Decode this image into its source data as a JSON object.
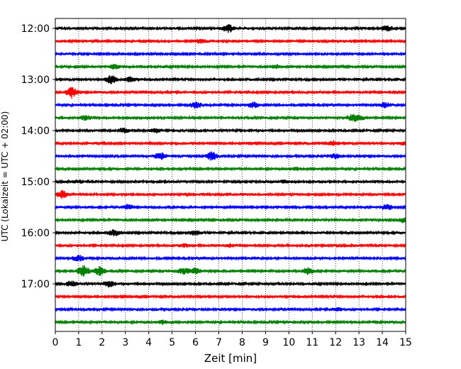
{
  "chart_data": {
    "type": "line",
    "title": "",
    "xlabel": "Zeit  [min]",
    "ylabel": "UTC (Lokalzeit = UTC + 02:00)",
    "xlim": [
      0,
      15
    ],
    "x_ticks": [
      "0",
      "1",
      "2",
      "3",
      "4",
      "5",
      "6",
      "7",
      "8",
      "9",
      "10",
      "11",
      "12",
      "13",
      "14",
      "15"
    ],
    "y_ticks": [
      "12:00",
      "13:00",
      "14:00",
      "15:00",
      "16:00",
      "17:00"
    ],
    "grid_x": true,
    "color_cycle": [
      "#000000",
      "#ff0000",
      "#0000ff",
      "#008000"
    ],
    "traces": [
      {
        "utc": "12:00",
        "color": "#000000",
        "events": [
          [
            7.4,
            0.9
          ],
          [
            14.2,
            0.6
          ]
        ]
      },
      {
        "utc": "12:15",
        "color": "#ff0000",
        "events": [
          [
            6.2,
            0.4
          ]
        ]
      },
      {
        "utc": "12:30",
        "color": "#0000ff",
        "events": []
      },
      {
        "utc": "12:45",
        "color": "#008000",
        "events": [
          [
            2.5,
            0.5
          ],
          [
            9.5,
            0.4
          ]
        ]
      },
      {
        "utc": "13:00",
        "color": "#000000",
        "events": [
          [
            2.4,
            1.0
          ],
          [
            3.2,
            0.5
          ]
        ]
      },
      {
        "utc": "13:15",
        "color": "#ff0000",
        "events": [
          [
            0.7,
            1.2
          ]
        ]
      },
      {
        "utc": "13:30",
        "color": "#0000ff",
        "events": [
          [
            6.0,
            0.7
          ],
          [
            8.5,
            0.6
          ],
          [
            14.1,
            0.5
          ]
        ]
      },
      {
        "utc": "13:45",
        "color": "#008000",
        "events": [
          [
            1.3,
            0.5
          ],
          [
            12.7,
            0.7
          ],
          [
            13.0,
            0.5
          ]
        ]
      },
      {
        "utc": "14:00",
        "color": "#000000",
        "events": [
          [
            2.9,
            0.5
          ],
          [
            4.3,
            0.4
          ]
        ]
      },
      {
        "utc": "14:15",
        "color": "#ff0000",
        "events": [
          [
            11.9,
            0.5
          ],
          [
            14.9,
            0.3
          ]
        ]
      },
      {
        "utc": "14:30",
        "color": "#0000ff",
        "events": [
          [
            4.5,
            0.8
          ],
          [
            6.7,
            1.0
          ],
          [
            12.0,
            0.5
          ]
        ]
      },
      {
        "utc": "14:45",
        "color": "#008000",
        "events": [
          [
            10.3,
            0.3
          ]
        ]
      },
      {
        "utc": "15:00",
        "color": "#000000",
        "events": [
          [
            1.0,
            0.3
          ],
          [
            9.8,
            0.3
          ]
        ]
      },
      {
        "utc": "15:15",
        "color": "#ff0000",
        "events": [
          [
            0.3,
            0.8
          ]
        ]
      },
      {
        "utc": "15:30",
        "color": "#0000ff",
        "events": [
          [
            3.1,
            0.6
          ],
          [
            14.2,
            0.6
          ]
        ]
      },
      {
        "utc": "15:45",
        "color": "#008000",
        "events": [
          [
            14.9,
            0.5
          ]
        ]
      },
      {
        "utc": "16:00",
        "color": "#000000",
        "events": [
          [
            2.5,
            0.7
          ],
          [
            6.0,
            0.5
          ]
        ]
      },
      {
        "utc": "16:15",
        "color": "#ff0000",
        "events": [
          [
            5.5,
            0.3
          ],
          [
            7.5,
            0.3
          ]
        ]
      },
      {
        "utc": "16:30",
        "color": "#0000ff",
        "events": [
          [
            1.0,
            0.7
          ]
        ]
      },
      {
        "utc": "16:45",
        "color": "#008000",
        "events": [
          [
            1.2,
            1.3
          ],
          [
            1.9,
            1.0
          ],
          [
            6.0,
            0.6
          ],
          [
            10.8,
            0.7
          ],
          [
            5.5,
            0.6
          ]
        ]
      },
      {
        "utc": "17:00",
        "color": "#000000",
        "events": [
          [
            0.7,
            0.6
          ],
          [
            2.3,
            0.8
          ]
        ]
      },
      {
        "utc": "17:15",
        "color": "#ff0000",
        "events": []
      },
      {
        "utc": "17:30",
        "color": "#0000ff",
        "events": [
          [
            12.1,
            0.3
          ]
        ]
      },
      {
        "utc": "17:45",
        "color": "#008000",
        "events": [
          [
            4.6,
            0.4
          ]
        ]
      }
    ]
  }
}
